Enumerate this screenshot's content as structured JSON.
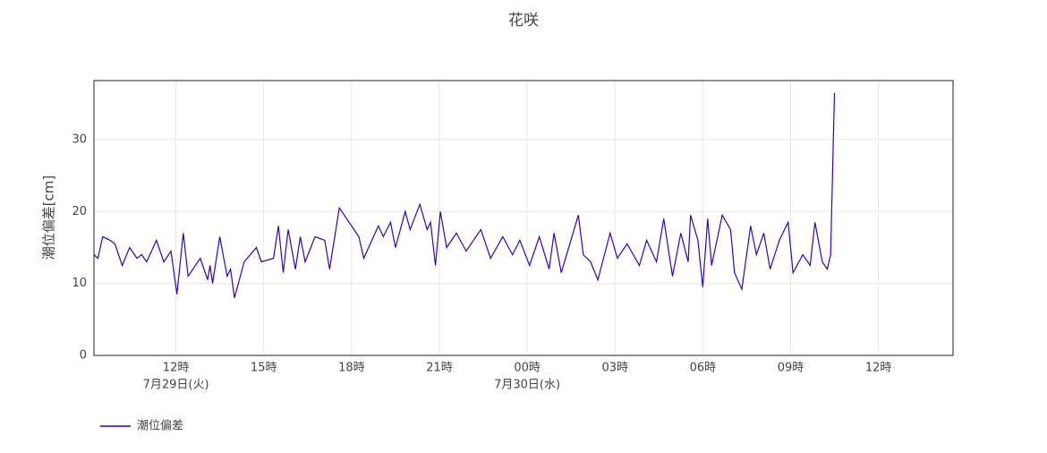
{
  "chart_data": {
    "type": "line",
    "title": "花咲",
    "ylabel": "潮位偏差[cm]",
    "x": [
      "07-29 09:12",
      "07-29 09:20",
      "07-29 09:30",
      "07-29 09:45",
      "07-29 09:55",
      "07-29 10:10",
      "07-29 10:25",
      "07-29 10:40",
      "07-29 10:50",
      "07-29 11:00",
      "07-29 11:20",
      "07-29 11:35",
      "07-29 11:50",
      "07-29 12:02",
      "07-29 12:15",
      "07-29 12:25",
      "07-29 12:50",
      "07-29 13:05",
      "07-29 13:10",
      "07-29 13:15",
      "07-29 13:30",
      "07-29 13:45",
      "07-29 13:52",
      "07-29 14:00",
      "07-29 14:20",
      "07-29 14:45",
      "07-29 14:55",
      "07-29 15:20",
      "07-29 15:30",
      "07-29 15:40",
      "07-29 15:50",
      "07-29 16:05",
      "07-29 16:15",
      "07-29 16:25",
      "07-29 16:45",
      "07-29 17:05",
      "07-29 17:15",
      "07-29 17:35",
      "07-29 18:00",
      "07-29 18:15",
      "07-29 18:25",
      "07-29 18:55",
      "07-29 19:05",
      "07-29 19:20",
      "07-29 19:30",
      "07-29 19:50",
      "07-29 20:00",
      "07-29 20:20",
      "07-29 20:35",
      "07-29 20:42",
      "07-29 20:52",
      "07-29 21:02",
      "07-29 21:15",
      "07-29 21:35",
      "07-29 21:55",
      "07-29 22:25",
      "07-29 22:45",
      "07-29 23:10",
      "07-29 23:30",
      "07-29 23:45",
      "07-30 00:05",
      "07-30 00:25",
      "07-30 00:45",
      "07-30 00:55",
      "07-30 01:10",
      "07-30 01:45",
      "07-30 01:55",
      "07-30 02:10",
      "07-30 02:25",
      "07-30 02:50",
      "07-30 03:05",
      "07-30 03:25",
      "07-30 03:50",
      "07-30 04:05",
      "07-30 04:25",
      "07-30 04:40",
      "07-30 04:58",
      "07-30 05:15",
      "07-30 05:30",
      "07-30 05:35",
      "07-30 05:50",
      "07-30 06:00",
      "07-30 06:10",
      "07-30 06:18",
      "07-30 06:40",
      "07-30 06:57",
      "07-30 07:05",
      "07-30 07:20",
      "07-30 07:38",
      "07-30 07:50",
      "07-30 08:05",
      "07-30 08:18",
      "07-30 08:37",
      "07-30 08:55",
      "07-30 09:05",
      "07-30 09:25",
      "07-30 09:40",
      "07-30 09:50",
      "07-30 10:05",
      "07-30 10:15",
      "07-30 10:22",
      "07-30 10:30"
    ],
    "series": [
      {
        "name": "潮位偏差",
        "color": "#3300cc",
        "values": [
          14,
          13.5,
          16.5,
          16,
          15.5,
          12.5,
          15,
          13.5,
          14,
          13,
          16,
          13,
          14.5,
          8.5,
          17,
          11,
          13.5,
          10.5,
          12.5,
          10,
          16.5,
          11,
          12,
          8,
          13,
          15,
          13,
          13.5,
          18,
          11.5,
          17.5,
          12,
          16.5,
          13,
          16.5,
          16,
          12,
          20.5,
          18,
          16.5,
          13.5,
          18,
          16.5,
          18.5,
          15,
          20,
          17.5,
          21,
          17.5,
          18.5,
          12.5,
          20,
          15,
          17,
          14.5,
          17.5,
          13.5,
          16.5,
          14,
          16,
          12.5,
          16.5,
          12,
          17,
          11.5,
          19.5,
          14,
          13,
          10.5,
          17,
          13.5,
          15.5,
          12.5,
          16,
          13,
          19,
          11,
          17,
          13,
          19.5,
          16,
          9.5,
          19,
          12.5,
          19.5,
          17.5,
          11.5,
          9.2,
          18,
          14,
          17,
          12,
          16,
          18.5,
          11.5,
          14,
          12.5,
          18.5,
          13,
          12,
          14,
          36.5
        ]
      }
    ],
    "xlim": [
      "07-29 09:12",
      "07-30 14:33"
    ],
    "xticks": [
      {
        "value": "07-29 12:00",
        "label": "12時"
      },
      {
        "value": "07-29 15:00",
        "label": "15時"
      },
      {
        "value": "07-29 18:00",
        "label": "18時"
      },
      {
        "value": "07-29 21:00",
        "label": "21時"
      },
      {
        "value": "07-30 00:00",
        "label": "00時"
      },
      {
        "value": "07-30 03:00",
        "label": "03時"
      },
      {
        "value": "07-30 06:00",
        "label": "06時"
      },
      {
        "value": "07-30 09:00",
        "label": "09時"
      },
      {
        "value": "07-30 12:00",
        "label": "12時"
      }
    ],
    "x_date_labels": [
      {
        "value": "07-29 12:00",
        "label": "7月29日(火)"
      },
      {
        "value": "07-30 00:00",
        "label": "7月30日(水)"
      }
    ],
    "ylim": [
      0,
      38.2
    ],
    "yticks": [
      0,
      10,
      20,
      30
    ],
    "grid": true
  }
}
